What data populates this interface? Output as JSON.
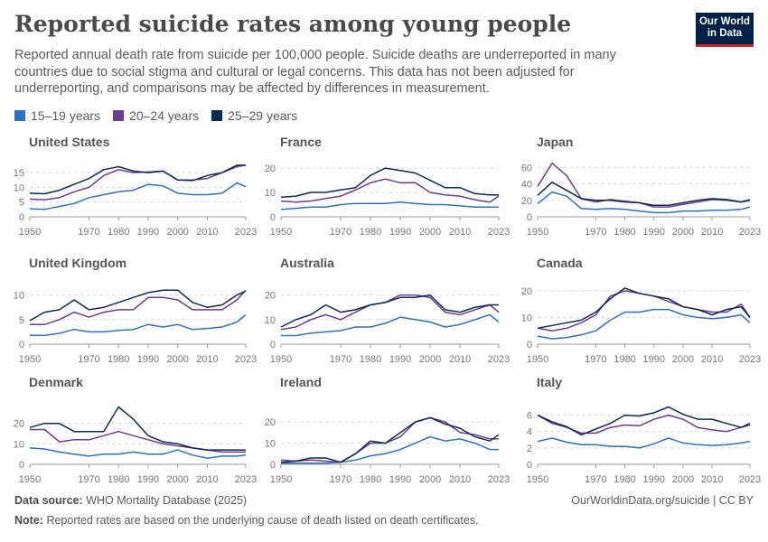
{
  "header": {
    "title": "Reported suicide rates among young people",
    "subtitle": "Reported annual death rate from suicide per 100,000 people. Suicide deaths are underreported in many countries due to social stigma and cultural or legal concerns. This data has not been adjusted for underreporting, and comparisons may be affected by differences in measurement.",
    "logo": "Our World in Data"
  },
  "legend": [
    {
      "label": "15–19 years",
      "color": "#2f6fc8"
    },
    {
      "label": "20–24 years",
      "color": "#6c3b92"
    },
    {
      "label": "25–29 years",
      "color": "#0e2a55"
    }
  ],
  "footer": {
    "source_label": "Data source:",
    "source": "WHO Mortality Database (2025)",
    "url": "OurWorldinData.org/suicide | CC BY",
    "note_label": "Note:",
    "note": "Reported rates are based on the underlying cause of death listed on death certificates."
  },
  "chart_data": {
    "type": "line",
    "grid": true,
    "legend_placement": "top",
    "x": [
      1950,
      1955,
      1960,
      1965,
      1970,
      1975,
      1980,
      1985,
      1990,
      1995,
      2000,
      2005,
      2010,
      2015,
      2020,
      2023
    ],
    "x_ticks": [
      "1950",
      "1970",
      "1980",
      "1990",
      "2000",
      "2010",
      "2023"
    ],
    "panels": [
      {
        "title": "United States",
        "ylim": [
          0,
          19
        ],
        "y_ticks": [
          0,
          5,
          10,
          15
        ],
        "series": [
          [
            2.7,
            2.5,
            3.5,
            4.5,
            6.5,
            7.5,
            8.5,
            9,
            11,
            10.5,
            8,
            7.5,
            7.5,
            8,
            11.5,
            10.2
          ],
          [
            6,
            5.8,
            6.5,
            8.5,
            10,
            14,
            16,
            15,
            15.2,
            15.5,
            12.5,
            12.5,
            13,
            15,
            17,
            17.5
          ],
          [
            8,
            7.8,
            9,
            11,
            13,
            16,
            17,
            15.5,
            15,
            15.5,
            12.5,
            12.3,
            14,
            15,
            17.5,
            17.5
          ]
        ]
      },
      {
        "title": "France",
        "ylim": [
          0,
          23
        ],
        "y_ticks": [
          0,
          10,
          20
        ],
        "series": [
          [
            3,
            3.5,
            4,
            4,
            5,
            5.5,
            5.5,
            5.5,
            6,
            5.5,
            5,
            5,
            4.5,
            4,
            4,
            4
          ],
          [
            6.5,
            6,
            6.5,
            7.5,
            8.5,
            11,
            14,
            15.5,
            14,
            14,
            10,
            9,
            8.5,
            7,
            6,
            8.5
          ],
          [
            8,
            8.5,
            10,
            10,
            11,
            12,
            17,
            20,
            19,
            18,
            15,
            12,
            12,
            9.5,
            9,
            9
          ]
        ]
      },
      {
        "title": "Japan",
        "ylim": [
          0,
          68
        ],
        "y_ticks": [
          0,
          20,
          40,
          60
        ],
        "series": [
          [
            16,
            30,
            25,
            10,
            9,
            10,
            9,
            7,
            5,
            5,
            7,
            7,
            8,
            8,
            9,
            12
          ],
          [
            37,
            65,
            50,
            22,
            18,
            21,
            19,
            17,
            12,
            12,
            15,
            18,
            21,
            20,
            18,
            21
          ],
          [
            26,
            42,
            32,
            22,
            20,
            20,
            18,
            17,
            14,
            14,
            17,
            20,
            22,
            21,
            18,
            20
          ]
        ]
      },
      {
        "title": "United Kingdom",
        "ylim": [
          0,
          12.5
        ],
        "y_ticks": [
          0,
          5,
          10
        ],
        "series": [
          [
            1.8,
            1.8,
            2.2,
            3,
            2.5,
            2.5,
            2.8,
            3,
            4,
            3.5,
            4,
            3,
            3.2,
            3.5,
            4.5,
            6
          ],
          [
            4,
            4,
            5,
            6.5,
            5.5,
            6.5,
            7,
            7,
            9.5,
            9.5,
            9,
            7,
            7,
            7,
            9,
            11
          ],
          [
            4.8,
            6.5,
            7,
            9,
            7,
            7.5,
            8.5,
            9.5,
            10.5,
            11,
            11,
            8.5,
            7.5,
            8,
            10,
            10.8
          ]
        ]
      },
      {
        "title": "Australia",
        "ylim": [
          0,
          25
        ],
        "y_ticks": [
          0,
          10,
          20
        ],
        "series": [
          [
            3.5,
            3.5,
            4.5,
            5,
            5.5,
            7,
            7,
            8.5,
            11,
            10,
            9,
            7,
            8,
            10,
            12,
            9
          ],
          [
            6,
            7,
            10,
            12,
            10,
            13,
            16,
            17,
            20,
            20,
            19,
            13,
            12,
            14,
            16,
            13
          ],
          [
            7,
            10,
            12,
            16,
            13,
            14,
            16,
            17,
            19,
            19,
            20,
            14,
            13,
            15,
            16,
            16
          ]
        ]
      },
      {
        "title": "Canada",
        "ylim": [
          0,
          23
        ],
        "y_ticks": [
          0,
          10,
          20
        ],
        "series": [
          [
            3,
            2,
            2.5,
            3.5,
            5,
            9,
            12,
            12,
            13,
            13,
            11,
            10,
            9.5,
            10,
            11,
            8
          ],
          [
            6,
            5,
            6,
            8,
            11,
            18,
            20,
            19,
            18,
            16,
            14,
            13,
            12,
            12,
            15,
            10
          ],
          [
            6,
            7,
            8,
            9,
            12,
            17,
            21,
            19,
            18,
            17,
            14,
            13,
            11,
            13,
            14,
            10
          ]
        ]
      },
      {
        "title": "Denmark",
        "ylim": [
          0,
          30
        ],
        "y_ticks": [
          0,
          10,
          20
        ],
        "series": [
          [
            8,
            7.5,
            6,
            5,
            4,
            5,
            5,
            6,
            5,
            5,
            7,
            4.5,
            3,
            4,
            4,
            4.5
          ],
          [
            17,
            17,
            11,
            12,
            12,
            14,
            16,
            14,
            12,
            10,
            9,
            8,
            7,
            6,
            6,
            6
          ],
          [
            18,
            20,
            20,
            16,
            16,
            16,
            28,
            22,
            14,
            11,
            10,
            8,
            7,
            7,
            7,
            7
          ]
        ]
      },
      {
        "title": "Ireland",
        "ylim": [
          0,
          29
        ],
        "y_ticks": [
          0,
          10,
          20
        ],
        "series": [
          [
            0.5,
            0.5,
            0.5,
            0.5,
            1,
            2,
            4,
            5,
            7,
            10,
            13,
            11,
            12,
            10,
            7,
            7
          ],
          [
            2,
            1.5,
            2,
            1.5,
            1,
            5,
            10,
            10,
            13,
            20,
            22,
            20,
            15,
            14,
            12,
            12
          ],
          [
            1,
            1.5,
            3,
            3,
            1,
            5,
            11,
            10,
            15,
            20,
            22,
            19,
            17,
            13,
            11,
            14
          ]
        ]
      },
      {
        "title": "Italy",
        "ylim": [
          0,
          7.5
        ],
        "y_ticks": [
          0,
          2,
          4,
          6
        ],
        "series": [
          [
            2.8,
            3.2,
            2.7,
            2.4,
            2.4,
            2.2,
            2.2,
            2,
            2.5,
            3.2,
            2.6,
            2.4,
            2.3,
            2.4,
            2.6,
            2.8
          ],
          [
            6,
            5,
            4.5,
            3.8,
            3.8,
            4.5,
            4.8,
            4.7,
            5.5,
            6,
            5.5,
            4.5,
            4.2,
            4,
            4.5,
            4.8
          ],
          [
            6,
            5.2,
            4.6,
            3.6,
            4.3,
            5,
            6,
            5.9,
            6.3,
            7,
            6.1,
            5.5,
            5.5,
            5,
            4.5,
            5
          ]
        ]
      }
    ]
  }
}
